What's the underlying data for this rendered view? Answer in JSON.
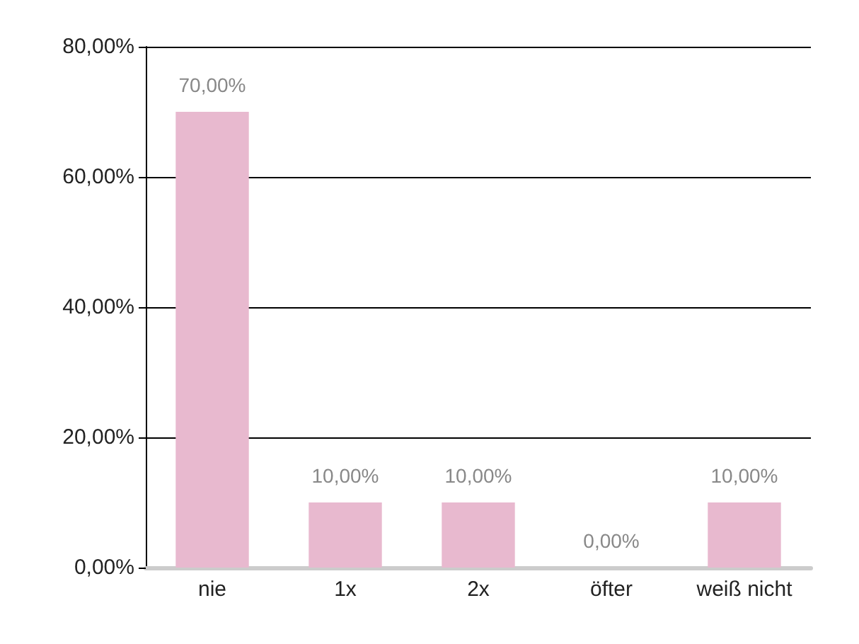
{
  "chart_data": {
    "type": "bar",
    "categories": [
      "nie",
      "1x",
      "2x",
      "öfter",
      "weiß nicht"
    ],
    "values": [
      70,
      10,
      10,
      0,
      10
    ],
    "value_labels": [
      "70,00%",
      "10,00%",
      "10,00%",
      "0,00%",
      "10,00%"
    ],
    "color": "#e8b9cf",
    "ylim": [
      0,
      80
    ],
    "yticks": [
      {
        "value": 0,
        "label": "0,00%"
      },
      {
        "value": 20,
        "label": "20,00%"
      },
      {
        "value": 40,
        "label": "40,00%"
      },
      {
        "value": 60,
        "label": "60,00%"
      },
      {
        "value": 80,
        "label": "80,00%"
      }
    ],
    "grid": "y"
  }
}
